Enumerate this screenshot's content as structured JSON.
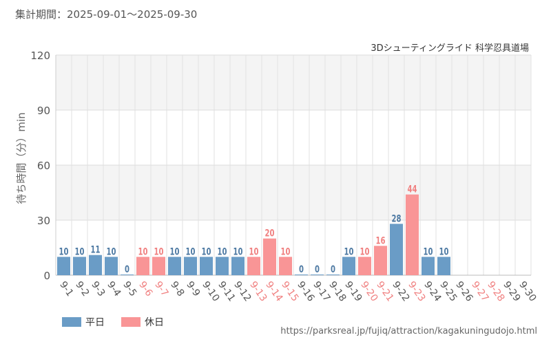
{
  "header": {
    "period_label": "集計期間：2025-09-01～2025-09-30"
  },
  "chart_data": {
    "type": "bar",
    "title": "3Dシューティングライド 科学忍具道場",
    "ylabel": "待ち時間（分）min",
    "ylim": [
      0,
      120
    ],
    "yticks": [
      0,
      30,
      60,
      90,
      120
    ],
    "grid": true,
    "categories": [
      "9-1",
      "9-2",
      "9-3",
      "9-4",
      "9-5",
      "9-6",
      "9-7",
      "9-8",
      "9-9",
      "9-10",
      "9-11",
      "9-12",
      "9-13",
      "9-14",
      "9-15",
      "9-16",
      "9-17",
      "9-18",
      "9-19",
      "9-20",
      "9-21",
      "9-22",
      "9-23",
      "9-24",
      "9-25",
      "9-26",
      "9-27",
      "9-28",
      "9-29",
      "9-30"
    ],
    "values": [
      10,
      10,
      11,
      10,
      0,
      10,
      10,
      10,
      10,
      10,
      10,
      10,
      10,
      20,
      10,
      0,
      0,
      0,
      10,
      10,
      16,
      28,
      44,
      10,
      10,
      null,
      null,
      null,
      null,
      null
    ],
    "day_type": [
      "weekday",
      "weekday",
      "weekday",
      "weekday",
      "weekday",
      "holiday",
      "holiday",
      "weekday",
      "weekday",
      "weekday",
      "weekday",
      "weekday",
      "holiday",
      "holiday",
      "holiday",
      "weekday",
      "weekday",
      "weekday",
      "weekday",
      "holiday",
      "holiday",
      "weekday",
      "holiday",
      "weekday",
      "weekday",
      "weekday",
      "holiday",
      "holiday",
      "weekday",
      "weekday"
    ],
    "legend": {
      "position": "bottom-left",
      "items": [
        {
          "key": "weekday",
          "label": "平日",
          "color": "#6a9cc6"
        },
        {
          "key": "holiday",
          "label": "休日",
          "color": "#f99596"
        }
      ]
    }
  },
  "colors": {
    "weekday": "#6a9cc6",
    "holiday": "#f99596",
    "weekday_label": "#4e7aa3",
    "holiday_label": "#f08080",
    "axis_text": "#555555"
  },
  "footer": {
    "source_url": "https://parksreal.jp/fujiq/attraction/kagakuningudojo.html"
  }
}
